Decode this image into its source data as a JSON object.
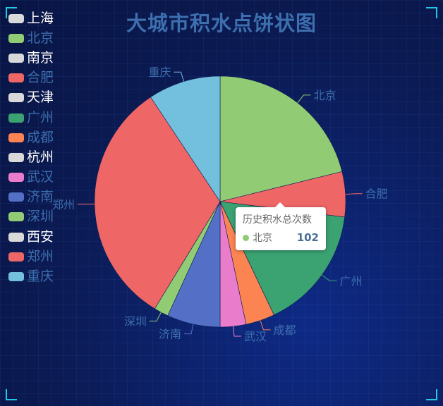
{
  "chart_data": {
    "type": "pie",
    "title": "大城市积水点饼状图",
    "legend": {
      "placement": "left",
      "items": [
        {
          "name": "上海",
          "color": "#d9d9d9",
          "label_color": "#ffffff"
        },
        {
          "name": "北京",
          "color": "#91cc75",
          "label_color": "#3d6fae"
        },
        {
          "name": "南京",
          "color": "#d9d9d9",
          "label_color": "#ffffff"
        },
        {
          "name": "合肥",
          "color": "#ee6666",
          "label_color": "#3d6fae"
        },
        {
          "name": "天津",
          "color": "#d9d9d9",
          "label_color": "#ffffff"
        },
        {
          "name": "广州",
          "color": "#3ba272",
          "label_color": "#3d6fae"
        },
        {
          "name": "成都",
          "color": "#fc8452",
          "label_color": "#3d6fae"
        },
        {
          "name": "杭州",
          "color": "#d9d9d9",
          "label_color": "#ffffff"
        },
        {
          "name": "武汉",
          "color": "#ea7ccc",
          "label_color": "#3d6fae"
        },
        {
          "name": "济南",
          "color": "#5470c6",
          "label_color": "#3d6fae"
        },
        {
          "name": "深圳",
          "color": "#91cc75",
          "label_color": "#3d6fae"
        },
        {
          "name": "西安",
          "color": "#d9d9d9",
          "label_color": "#ffffff"
        },
        {
          "name": "郑州",
          "color": "#ee6666",
          "label_color": "#3d6fae"
        },
        {
          "name": "重庆",
          "color": "#73c0de",
          "label_color": "#3d6fae"
        }
      ]
    },
    "slices": [
      {
        "name": "北京",
        "value": 102,
        "color": "#91cc75"
      },
      {
        "name": "合肥",
        "value": 28,
        "color": "#ee6666"
      },
      {
        "name": "广州",
        "value": 77,
        "color": "#3ba272"
      },
      {
        "name": "成都",
        "value": 18,
        "color": "#fc8452"
      },
      {
        "name": "武汉",
        "value": 16,
        "color": "#ea7ccc"
      },
      {
        "name": "济南",
        "value": 33,
        "color": "#5470c6"
      },
      {
        "name": "深圳",
        "value": 9,
        "color": "#91cc75"
      },
      {
        "name": "郑州",
        "value": 154,
        "color": "#ee6666"
      },
      {
        "name": "重庆",
        "value": 45,
        "color": "#73c0de"
      }
    ],
    "tooltip": {
      "title": "历史积水总次数",
      "name": "北京",
      "value": 102,
      "color": "#91cc75"
    },
    "colors": {
      "background": "#0b1a52",
      "label": "#3d6fae",
      "corner_accent": "#20c9e6"
    }
  }
}
